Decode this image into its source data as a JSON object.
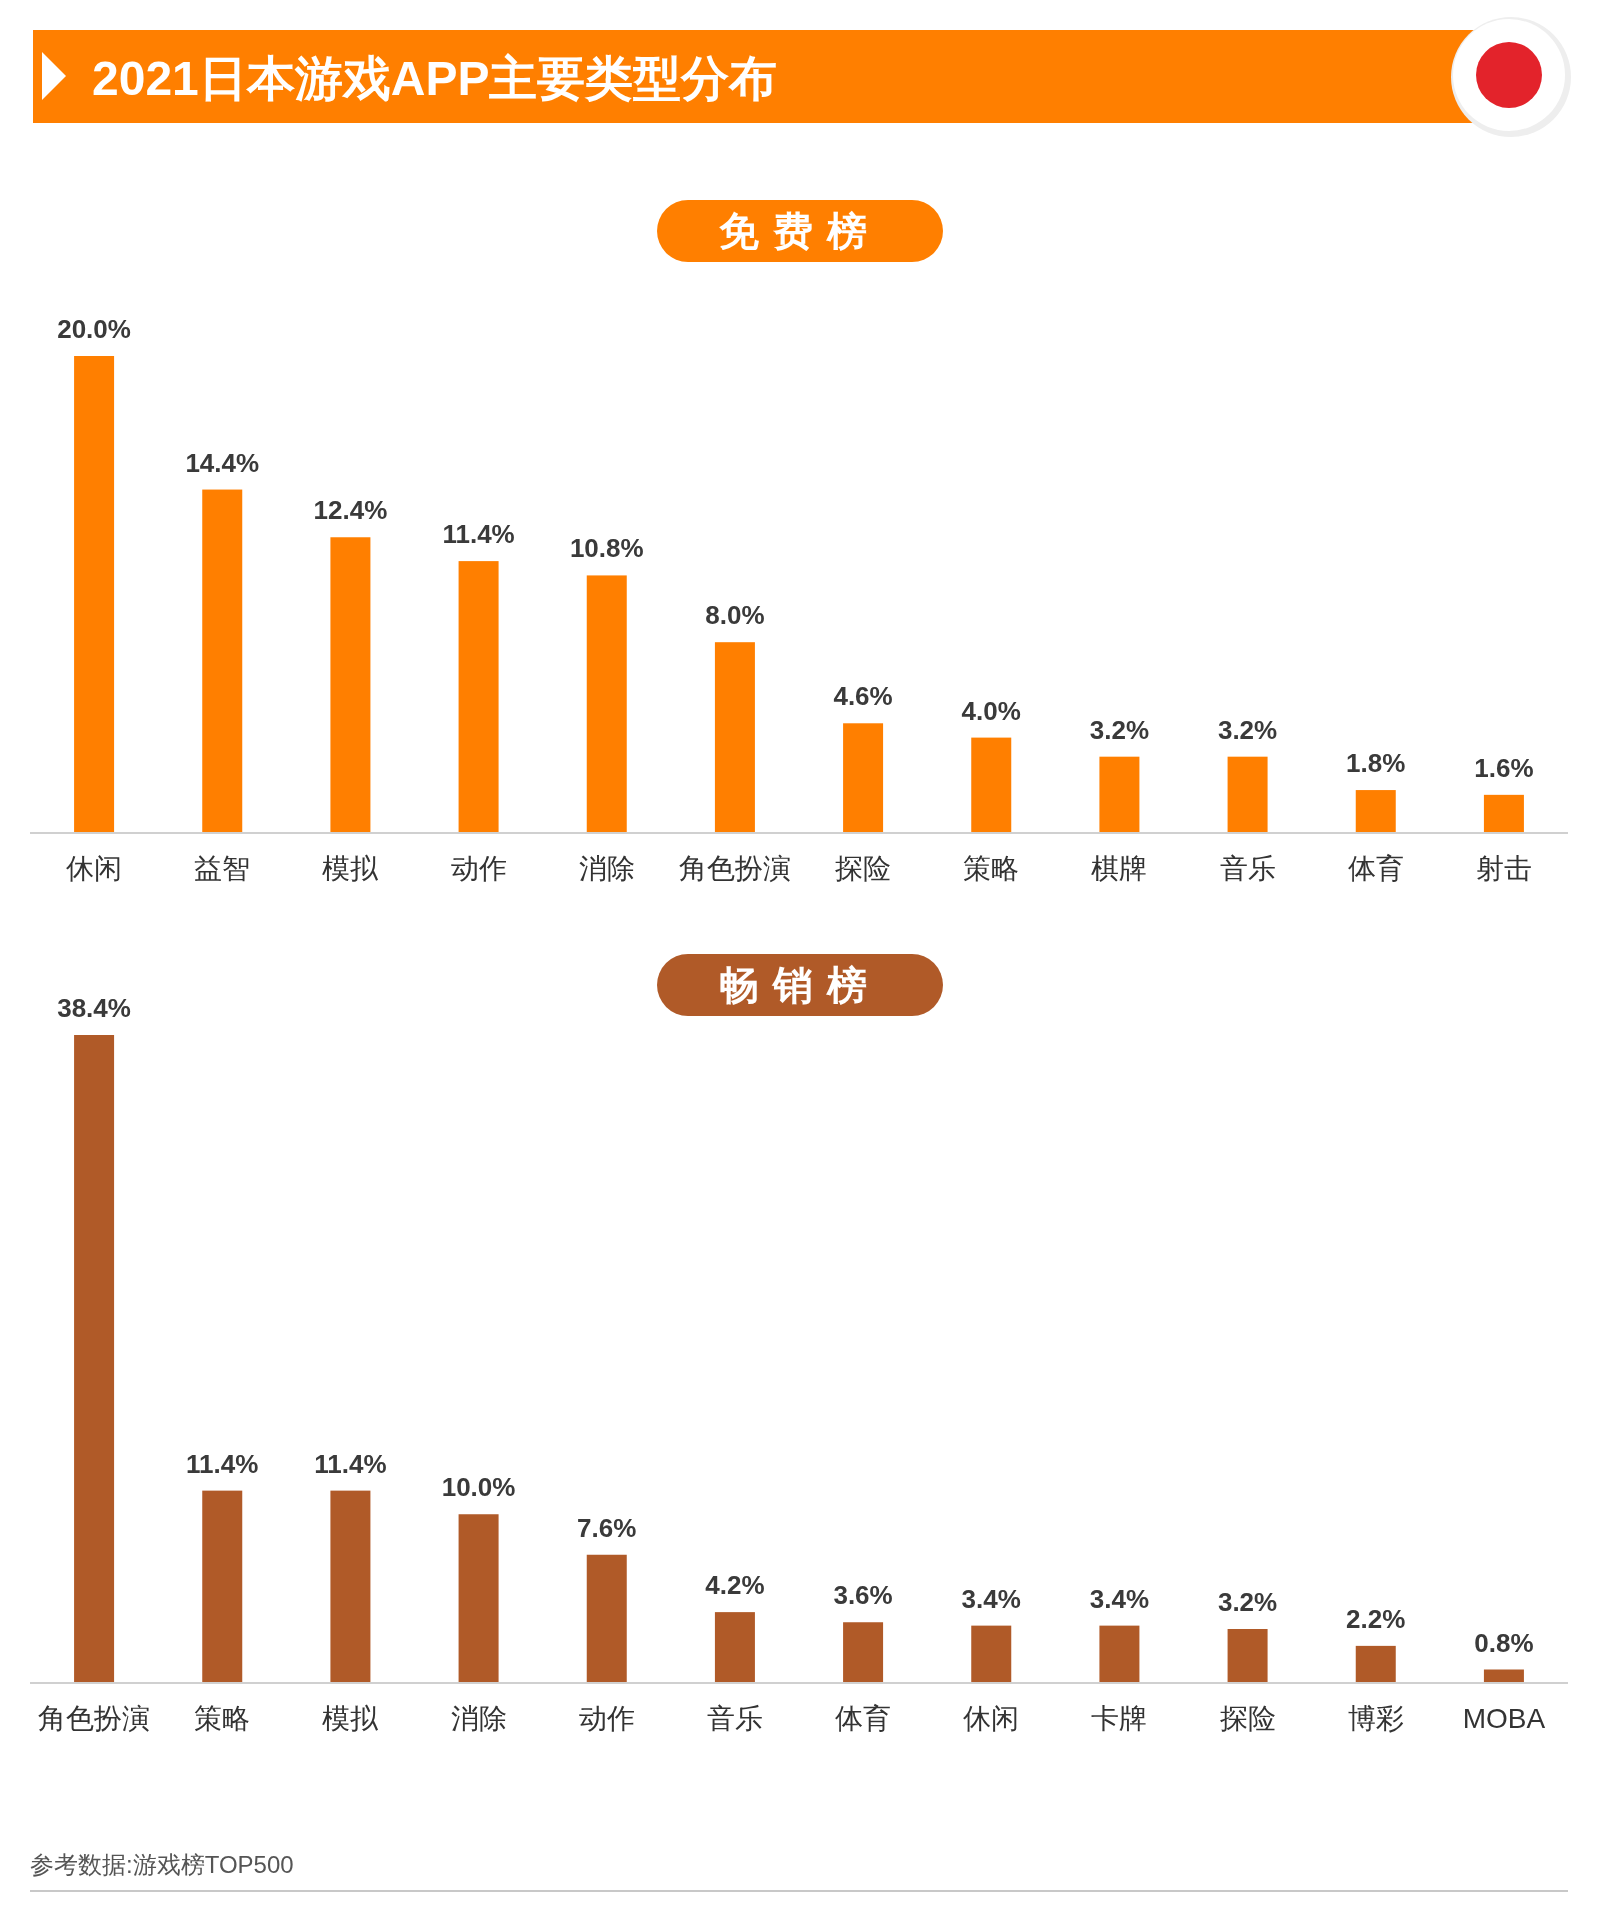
{
  "chart_data": [
    {
      "type": "bar",
      "title": "2021日本游戏APP主要类型分布",
      "subtitle": "免费榜",
      "color": "#ff7f00",
      "categories": [
        "休闲",
        "益智",
        "模拟",
        "动作",
        "消除",
        "角色扮演",
        "探险",
        "策略",
        "棋牌",
        "音乐",
        "体育",
        "射击"
      ],
      "values": [
        20.0,
        14.4,
        12.4,
        11.4,
        10.8,
        8.0,
        4.6,
        4.0,
        3.2,
        3.2,
        1.8,
        1.6
      ],
      "value_labels": [
        "20.0%",
        "14.4%",
        "12.4%",
        "11.4%",
        "10.8%",
        "8.0%",
        "4.6%",
        "4.0%",
        "3.2%",
        "3.2%",
        "1.8%",
        "1.6%"
      ]
    },
    {
      "type": "bar",
      "title": "畅销榜",
      "color": "#b05a28",
      "categories": [
        "角色扮演",
        "策略",
        "模拟",
        "消除",
        "动作",
        "音乐",
        "体育",
        "休闲",
        "卡牌",
        "探险",
        "博彩",
        "MOBA"
      ],
      "values": [
        38.4,
        11.4,
        11.4,
        10.0,
        7.6,
        4.2,
        3.6,
        3.4,
        3.4,
        3.2,
        2.2,
        0.8
      ],
      "value_labels": [
        "38.4%",
        "11.4%",
        "11.4%",
        "10.0%",
        "7.6%",
        "4.2%",
        "3.6%",
        "3.4%",
        "3.4%",
        "3.2%",
        "2.2%",
        "0.8%"
      ],
      "annotations": [
        "参考数据:游戏榜TOP500"
      ]
    }
  ]
}
